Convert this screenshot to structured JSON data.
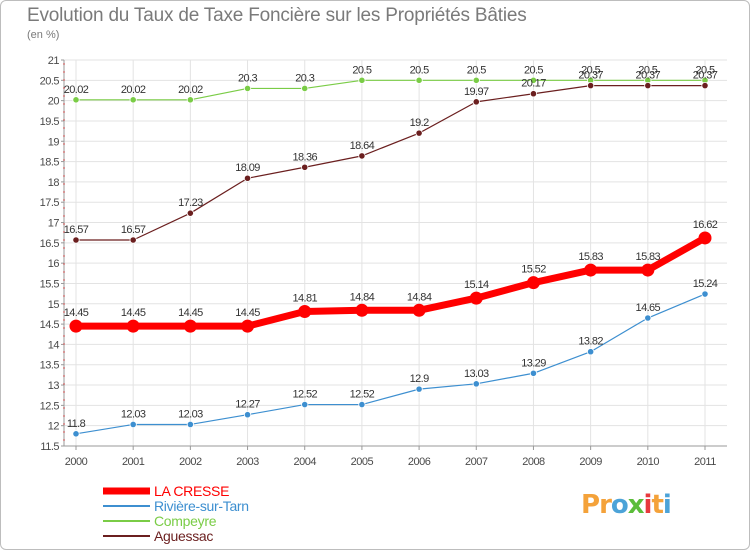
{
  "title": "Evolution du Taux de Taxe Foncière sur les Propriétés Bâties",
  "subtitle": "(en %)",
  "logo": {
    "letters": [
      "P",
      "r",
      "o",
      "x",
      "i",
      "t",
      "i"
    ],
    "colors": [
      "#f4a23a",
      "#f4a23a",
      "#4ca3d8",
      "#5bbd3a",
      "#e8383d",
      "#f4a23a",
      "#4ca3d8"
    ]
  },
  "chart_data": {
    "type": "line",
    "title": "Evolution du Taux de Taxe Foncière sur les Propriétés Bâties",
    "ylabel": "(en %)",
    "x": [
      "2000",
      "2001",
      "2002",
      "2003",
      "2004",
      "2005",
      "2006",
      "2007",
      "2008",
      "2009",
      "2010",
      "2011"
    ],
    "ylim": [
      11.5,
      21
    ],
    "yticks": [
      "11.5",
      "12",
      "12.5",
      "13",
      "13.5",
      "14",
      "14.5",
      "15",
      "15.5",
      "16",
      "16.5",
      "17",
      "17.5",
      "18",
      "18.5",
      "19",
      "19.5",
      "20",
      "20.5",
      "21"
    ],
    "grid": true,
    "legend_position": "bottom-left",
    "series": [
      {
        "name": "LA CRESSE",
        "color": "#ff0000",
        "emphasis": true,
        "values": [
          14.45,
          14.45,
          14.45,
          14.45,
          14.81,
          14.84,
          14.84,
          15.14,
          15.52,
          15.83,
          15.83,
          16.62
        ],
        "labels": [
          "14.45",
          "14.45",
          "14.45",
          "14.45",
          "14.81",
          "14.84",
          "14.84",
          "15.14",
          "15.52",
          "15.83",
          "15.83",
          "16.62"
        ]
      },
      {
        "name": "Rivière-sur-Tarn",
        "color": "#3d8fd0",
        "values": [
          11.8,
          12.03,
          12.03,
          12.27,
          12.52,
          12.52,
          12.9,
          13.03,
          13.29,
          13.82,
          14.65,
          15.24
        ],
        "labels": [
          "11.8",
          "12.03",
          "12.03",
          "12.27",
          "12.52",
          "12.52",
          "12.9",
          "13.03",
          "13.29",
          "13.82",
          "14.65",
          "15.24"
        ]
      },
      {
        "name": "Compeyre",
        "color": "#7acc46",
        "values": [
          20.02,
          20.02,
          20.02,
          20.3,
          20.3,
          20.5,
          20.5,
          20.5,
          20.5,
          20.5,
          20.5,
          20.5
        ],
        "labels": [
          "20.02",
          "20.02",
          "20.02",
          "20.3",
          "20.3",
          "20.5",
          "20.5",
          "20.5",
          "20.5",
          "20.5",
          "20.5",
          "20.5"
        ]
      },
      {
        "name": "Aguessac",
        "color": "#6b1f1f",
        "values": [
          16.57,
          16.57,
          17.23,
          18.09,
          18.36,
          18.64,
          19.2,
          19.97,
          20.17,
          20.37,
          20.37,
          20.37
        ],
        "labels": [
          "16.57",
          "16.57",
          "17.23",
          "18.09",
          "18.36",
          "18.64",
          "19.2",
          "19.97",
          "20.17",
          "20.37",
          "20.37",
          "20.37"
        ]
      }
    ]
  }
}
